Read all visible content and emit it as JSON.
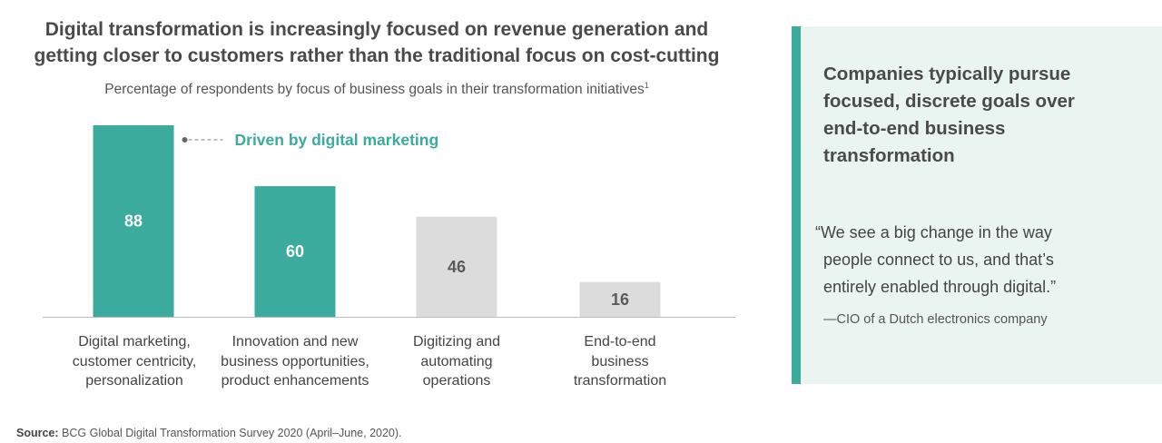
{
  "title_lines": [
    "Digital transformation is increasingly focused on revenue generation and",
    "getting closer to customers rather than the traditional focus on cost-cutting"
  ],
  "subtitle": "Percentage of respondents by focus of business goals in their transformation initiatives",
  "subtitle_footnote": "1",
  "chart_data": {
    "type": "bar",
    "title": "Digital transformation is increasingly focused on revenue generation and getting closer to customers rather than the traditional focus on cost-cutting",
    "subtitle": "Percentage of respondents by focus of business goals in their transformation initiatives",
    "categories": [
      [
        "Digital marketing,",
        "customer centricity,",
        "personalization"
      ],
      [
        "Innovation and new",
        "business opportunities,",
        "product enhancements"
      ],
      [
        "Digitizing and",
        "automating",
        "operations"
      ],
      [
        "End-to-end",
        "business",
        "transformation"
      ]
    ],
    "values": [
      88,
      60,
      46,
      16
    ],
    "bar_colors": [
      "#3aab9d",
      "#3aab9d",
      "#dcdcdc",
      "#dcdcdc"
    ],
    "label_colors": [
      "#ffffff",
      "#ffffff",
      "#5a5a5a",
      "#5a5a5a"
    ],
    "ylim": [
      0,
      88
    ],
    "xlabel": "",
    "ylabel": "",
    "annotation": {
      "text": "Driven by digital marketing",
      "target_index": 0,
      "color": "#3aab9d"
    }
  },
  "source": {
    "label": "Source:",
    "text": "BCG Global Digital Transformation Survey 2020 (April–June, 2020)."
  },
  "sidebar": {
    "accent_color": "#3aab9d",
    "heading_lines": [
      "Companies typically pursue",
      "focused, discrete goals over",
      "end-to-end business",
      "transformation"
    ],
    "quote_lines": [
      "“We see a big change in the way",
      "people connect to us, and that’s",
      "entirely enabled through digital.”"
    ],
    "attribution": "—CIO of a Dutch electronics company"
  }
}
